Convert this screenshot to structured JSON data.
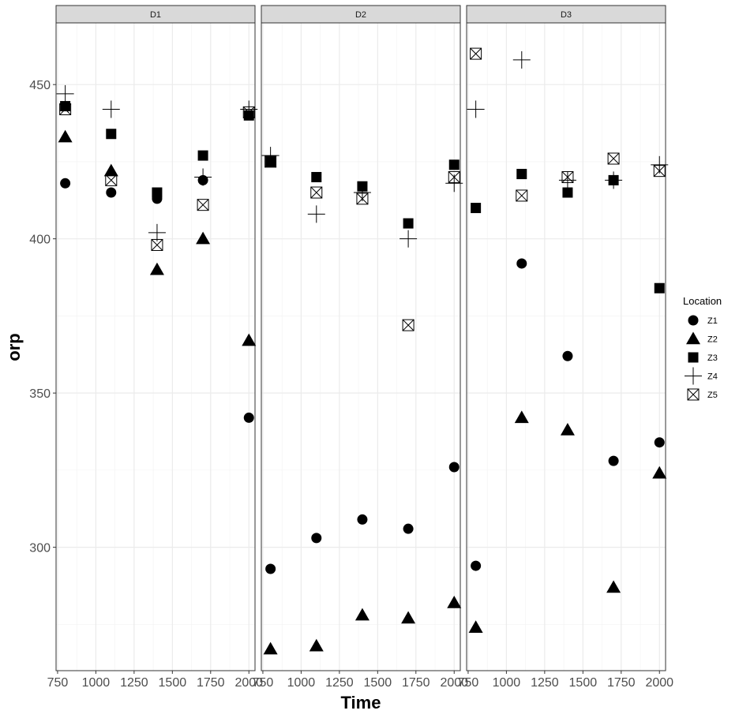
{
  "chart_data": {
    "type": "scatter",
    "xlabel": "Time",
    "ylabel": "orp",
    "xlim": [
      740,
      2040
    ],
    "ylim": [
      260,
      470
    ],
    "x_ticks": [
      750,
      1000,
      1250,
      1500,
      1750,
      2000
    ],
    "x_tick_labels": [
      "750",
      "1000",
      "1250",
      "1500",
      "1750",
      "2000"
    ],
    "y_ticks": [
      300,
      350,
      400,
      450
    ],
    "y_tick_labels": [
      "300",
      "350",
      "400",
      "450"
    ],
    "grid": true,
    "legend": {
      "title": "Location",
      "placement": "right",
      "entries": [
        {
          "label": "Z1",
          "shape": "circle"
        },
        {
          "label": "Z2",
          "shape": "triangle"
        },
        {
          "label": "Z3",
          "shape": "square"
        },
        {
          "label": "Z4",
          "shape": "plus"
        },
        {
          "label": "Z5",
          "shape": "boxed-x"
        }
      ]
    },
    "x": [
      800,
      1100,
      1400,
      1700,
      2000
    ],
    "panels": [
      {
        "name": "D1",
        "series": [
          {
            "name": "Z1",
            "values": [
              418,
              415,
              413,
              419,
              342
            ]
          },
          {
            "name": "Z2",
            "values": [
              433,
              422,
              390,
              400,
              367
            ]
          },
          {
            "name": "Z3",
            "values": [
              443,
              434,
              415,
              427,
              440
            ]
          },
          {
            "name": "Z4",
            "values": [
              447,
              442,
              402,
              420,
              442
            ]
          },
          {
            "name": "Z5",
            "values": [
              442,
              419,
              398,
              411,
              441
            ]
          }
        ]
      },
      {
        "name": "D2",
        "series": [
          {
            "name": "Z1",
            "values": [
              293,
              303,
              309,
              306,
              326
            ]
          },
          {
            "name": "Z2",
            "values": [
              267,
              268,
              278,
              277,
              282
            ]
          },
          {
            "name": "Z3",
            "values": [
              425,
              420,
              417,
              405,
              424
            ]
          },
          {
            "name": "Z4",
            "values": [
              427,
              408,
              415,
              400,
              418
            ]
          },
          {
            "name": "Z5",
            "values": [
              425,
              415,
              413,
              372,
              420
            ]
          }
        ]
      },
      {
        "name": "D3",
        "series": [
          {
            "name": "Z1",
            "values": [
              294,
              392,
              362,
              328,
              334
            ]
          },
          {
            "name": "Z2",
            "values": [
              274,
              342,
              338,
              287,
              324
            ]
          },
          {
            "name": "Z3",
            "values": [
              410,
              421,
              415,
              419,
              384
            ]
          },
          {
            "name": "Z4",
            "values": [
              442,
              458,
              419,
              419,
              424
            ]
          },
          {
            "name": "Z5",
            "values": [
              460,
              414,
              420,
              426,
              422
            ]
          }
        ]
      }
    ]
  }
}
